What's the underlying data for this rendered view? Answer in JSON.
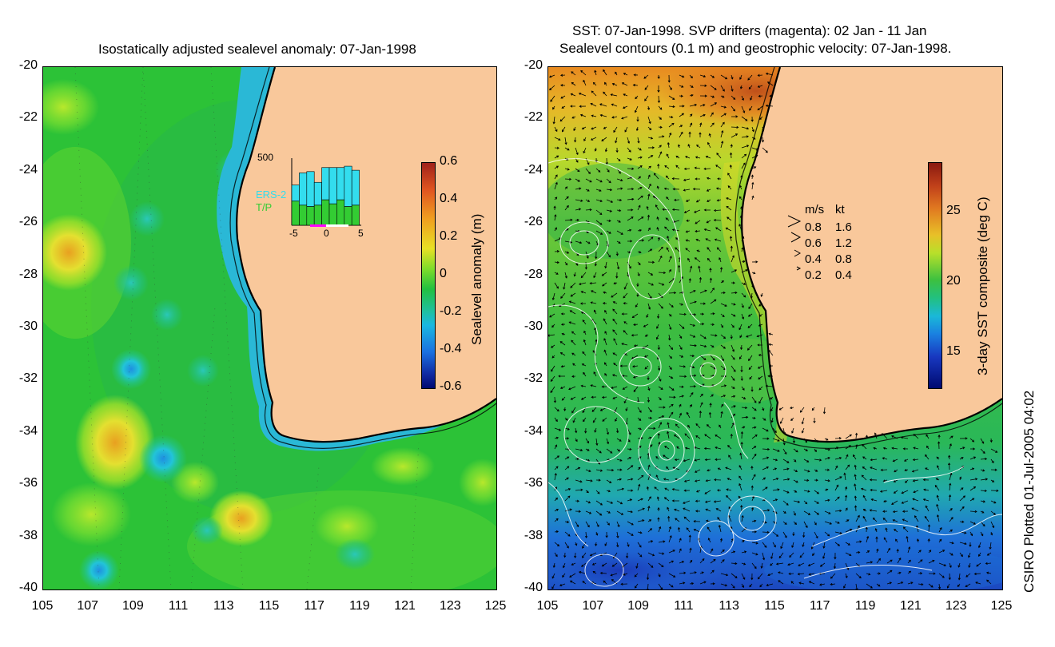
{
  "left_panel": {
    "title": "Isostatically adjusted sealevel anomaly: 07-Jan-1998",
    "colorbar": {
      "label": "Sealevel anomaly (m)",
      "ticks": [
        "0.6",
        "0.4",
        "0.2",
        "0",
        "-0.2",
        "-0.4",
        "-0.6"
      ],
      "range": [
        -0.6,
        0.6
      ]
    },
    "inset": {
      "ymax_label": "500",
      "series": [
        "ERS-2",
        "T/P"
      ],
      "x_ticks": [
        "-5",
        "0",
        "5"
      ],
      "series_colors": [
        "#33ddee",
        "#33cc33"
      ],
      "ers2_counts": [
        120,
        240,
        260,
        170,
        240,
        270,
        240,
        300,
        260
      ],
      "tp_counts": [
        180,
        150,
        140,
        150,
        190,
        160,
        190,
        140,
        150
      ]
    }
  },
  "right_panel": {
    "title_line1": "SST: 07-Jan-1998. SVP drifters (magenta): 02 Jan - 11 Jan",
    "title_line2": "Sealevel contours (0.1 m) and geostrophic velocity: 07-Jan-1998.",
    "colorbar": {
      "label": "3-day SST composite (deg C)",
      "ticks": [
        "25",
        "20",
        "15"
      ],
      "range": [
        12.5,
        28.5
      ]
    },
    "velocity_legend": {
      "header_ms": "m/s",
      "header_kt": "kt",
      "rows": [
        {
          "ms": "0.8",
          "kt": "1.6"
        },
        {
          "ms": "0.6",
          "kt": "1.2"
        },
        {
          "ms": "0.4",
          "kt": "0.8"
        },
        {
          "ms": "0.2",
          "kt": "0.4"
        }
      ]
    }
  },
  "axes": {
    "lat_ticks": [
      "-20",
      "-22",
      "-24",
      "-26",
      "-28",
      "-30",
      "-32",
      "-34",
      "-36",
      "-38",
      "-40"
    ],
    "lon_ticks": [
      "105",
      "107",
      "109",
      "111",
      "113",
      "115",
      "117",
      "119",
      "121",
      "123",
      "125"
    ],
    "lat_range": [
      -40,
      -20
    ],
    "lon_range": [
      105,
      125
    ]
  },
  "credit": "CSIRO Plotted 01-Jul-2005 04:02",
  "colors": {
    "land": "#f9c89b",
    "coast": "#000000",
    "anomaly_mid": "#2cc237"
  }
}
